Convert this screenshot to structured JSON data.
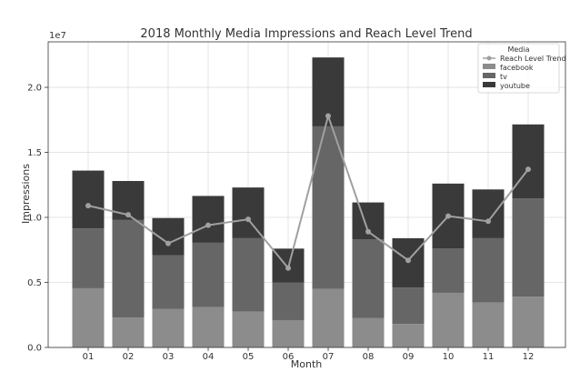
{
  "chart_data": {
    "type": "bar",
    "stacked": true,
    "title": "2018 Monthly Media Impressions and Reach Level Trend",
    "xlabel": "Month",
    "ylabel": "Impressions",
    "y_scale_label": "1e7",
    "ylim": [
      0,
      23500000
    ],
    "y_ticks": [
      0,
      5000000,
      10000000,
      15000000,
      20000000
    ],
    "y_tick_labels": [
      "0.0",
      "0.5",
      "1.0",
      "1.5",
      "2.0"
    ],
    "categories": [
      "01",
      "02",
      "03",
      "04",
      "05",
      "06",
      "07",
      "08",
      "09",
      "10",
      "11",
      "12"
    ],
    "series": [
      {
        "name": "facebook",
        "color": "#8c8c8c",
        "values": [
          4550000,
          2300000,
          2950000,
          3100000,
          2750000,
          2100000,
          4500000,
          2250000,
          1800000,
          4200000,
          3450000,
          3900000
        ]
      },
      {
        "name": "tv",
        "color": "#666666",
        "values": [
          4600000,
          7500000,
          4150000,
          4950000,
          5650000,
          2900000,
          12500000,
          6050000,
          2800000,
          3400000,
          4950000,
          7550000
        ]
      },
      {
        "name": "youtube",
        "color": "#3a3a3a",
        "values": [
          4450000,
          3000000,
          2850000,
          3600000,
          3900000,
          2600000,
          5300000,
          2850000,
          3800000,
          5000000,
          3750000,
          5700000
        ]
      }
    ],
    "line_series": {
      "name": "Reach Level Trend",
      "color": "#a0a0a0",
      "values": [
        10900000,
        10200000,
        8000000,
        9400000,
        9850000,
        6100000,
        17800000,
        8900000,
        6700000,
        10100000,
        9700000,
        13700000
      ]
    },
    "legend": {
      "title": "Media",
      "position": "top-right"
    },
    "grid": true
  }
}
